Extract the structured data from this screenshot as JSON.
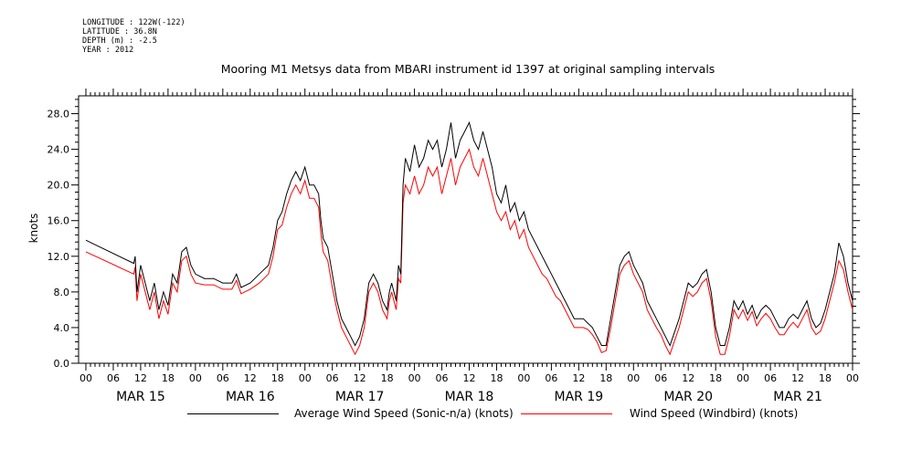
{
  "meta": {
    "longitude": "LONGITUDE : 122W(-122)",
    "latitude": "LATITUDE : 36.8N",
    "depth": "DEPTH (m) : -2.5",
    "year": "YEAR : 2012"
  },
  "chart_data": {
    "type": "line",
    "title": "Mooring M1 Metsys data from MBARI instrument id 1397 at original sampling intervals",
    "xlabel": "",
    "ylabel": "knots",
    "ylim": [
      0,
      30
    ],
    "yticks": [
      "0.0",
      "4.0",
      "8.0",
      "12.0",
      "16.0",
      "20.0",
      "24.0",
      "28.0"
    ],
    "xlim_hours": [
      0,
      168
    ],
    "hour_tick_labels": [
      "00",
      "06",
      "12",
      "18",
      "00",
      "06",
      "12",
      "18",
      "00",
      "06",
      "12",
      "18",
      "00",
      "06",
      "12",
      "18",
      "00",
      "06",
      "12",
      "18",
      "00",
      "06",
      "12",
      "18",
      "00",
      "06",
      "12",
      "18",
      "00"
    ],
    "day_labels": [
      "MAR 15",
      "MAR 16",
      "MAR 17",
      "MAR 18",
      "MAR 19",
      "MAR 20",
      "MAR 21"
    ],
    "grid": false,
    "legend_position": "bottom",
    "series": [
      {
        "name": "Average Wind Speed (Sonic-n/a) (knots)",
        "color": "#000000",
        "points": [
          [
            0,
            13.8
          ],
          [
            10.5,
            11.2
          ],
          [
            10.8,
            12
          ],
          [
            11.2,
            8
          ],
          [
            12,
            11
          ],
          [
            13,
            9
          ],
          [
            14,
            7
          ],
          [
            15,
            9
          ],
          [
            16,
            6
          ],
          [
            17,
            8
          ],
          [
            18,
            6.5
          ],
          [
            19,
            10
          ],
          [
            20,
            9
          ],
          [
            21,
            12.5
          ],
          [
            22,
            13
          ],
          [
            23,
            11
          ],
          [
            24,
            10
          ],
          [
            26,
            9.5
          ],
          [
            28,
            9.5
          ],
          [
            30,
            9
          ],
          [
            32,
            9
          ],
          [
            33,
            10
          ],
          [
            34,
            8.5
          ],
          [
            36,
            9
          ],
          [
            38,
            10
          ],
          [
            40,
            11
          ],
          [
            41,
            13
          ],
          [
            42,
            16
          ],
          [
            43,
            17
          ],
          [
            44,
            19
          ],
          [
            45,
            20.5
          ],
          [
            46,
            21.5
          ],
          [
            47,
            20.5
          ],
          [
            48,
            22
          ],
          [
            49,
            20
          ],
          [
            50,
            20
          ],
          [
            51,
            19
          ],
          [
            51.5,
            16
          ],
          [
            52,
            14
          ],
          [
            53,
            13
          ],
          [
            54,
            10
          ],
          [
            55,
            7
          ],
          [
            56,
            5
          ],
          [
            57,
            4
          ],
          [
            58,
            3
          ],
          [
            59,
            2
          ],
          [
            60,
            3
          ],
          [
            61,
            5
          ],
          [
            62,
            9
          ],
          [
            63,
            10
          ],
          [
            64,
            9
          ],
          [
            65,
            7
          ],
          [
            66,
            6
          ],
          [
            66.5,
            8
          ],
          [
            67,
            9
          ],
          [
            68,
            7
          ],
          [
            68.5,
            11
          ],
          [
            69,
            10
          ],
          [
            69.5,
            20
          ],
          [
            70,
            23
          ],
          [
            71,
            21.5
          ],
          [
            72,
            24.5
          ],
          [
            73,
            22
          ],
          [
            74,
            23
          ],
          [
            75,
            25
          ],
          [
            76,
            24
          ],
          [
            77,
            25
          ],
          [
            78,
            22
          ],
          [
            79,
            24
          ],
          [
            80,
            27
          ],
          [
            81,
            23
          ],
          [
            82,
            25
          ],
          [
            83,
            26
          ],
          [
            84,
            27
          ],
          [
            85,
            25
          ],
          [
            86,
            24
          ],
          [
            87,
            26
          ],
          [
            88,
            24
          ],
          [
            89,
            22
          ],
          [
            90,
            19
          ],
          [
            91,
            18
          ],
          [
            92,
            20
          ],
          [
            93,
            17
          ],
          [
            94,
            18
          ],
          [
            95,
            16
          ],
          [
            96,
            17
          ],
          [
            97,
            15
          ],
          [
            98,
            14
          ],
          [
            99,
            13
          ],
          [
            100,
            12
          ],
          [
            101,
            11
          ],
          [
            102,
            10
          ],
          [
            103,
            9
          ],
          [
            104,
            8
          ],
          [
            105,
            7
          ],
          [
            106,
            6
          ],
          [
            107,
            5
          ],
          [
            108,
            5
          ],
          [
            109,
            5
          ],
          [
            110,
            4.5
          ],
          [
            111,
            4
          ],
          [
            112,
            3
          ],
          [
            113,
            2
          ],
          [
            114,
            2
          ],
          [
            115,
            5
          ],
          [
            116,
            8
          ],
          [
            117,
            11
          ],
          [
            118,
            12
          ],
          [
            119,
            12.5
          ],
          [
            120,
            11
          ],
          [
            121,
            10
          ],
          [
            122,
            9
          ],
          [
            123,
            7
          ],
          [
            124,
            6
          ],
          [
            125,
            5
          ],
          [
            126,
            4
          ],
          [
            127,
            3
          ],
          [
            128,
            2
          ],
          [
            129,
            3.5
          ],
          [
            130,
            5
          ],
          [
            131,
            7
          ],
          [
            132,
            9
          ],
          [
            133,
            8.5
          ],
          [
            134,
            9
          ],
          [
            135,
            10
          ],
          [
            136,
            10.5
          ],
          [
            137,
            8
          ],
          [
            138,
            4
          ],
          [
            139,
            2
          ],
          [
            140,
            2
          ],
          [
            141,
            4
          ],
          [
            142,
            7
          ],
          [
            143,
            6
          ],
          [
            144,
            7
          ],
          [
            145,
            5.5
          ],
          [
            146,
            6.5
          ],
          [
            147,
            5
          ],
          [
            148,
            6
          ],
          [
            149,
            6.5
          ],
          [
            150,
            6
          ],
          [
            151,
            5
          ],
          [
            152,
            4
          ],
          [
            153,
            4
          ],
          [
            154,
            5
          ],
          [
            155,
            5.5
          ],
          [
            156,
            5
          ],
          [
            157,
            6
          ],
          [
            158,
            7
          ],
          [
            159,
            5
          ],
          [
            160,
            4
          ],
          [
            161,
            4.5
          ],
          [
            162,
            6
          ],
          [
            163,
            8
          ],
          [
            164,
            10
          ],
          [
            165,
            13.5
          ],
          [
            166,
            12
          ],
          [
            167,
            9
          ],
          [
            168,
            7
          ]
        ]
      },
      {
        "name": "Wind Speed (Windbird) (knots)",
        "color": "#ff0000",
        "points": [
          [
            0,
            12.5
          ],
          [
            10.5,
            10
          ],
          [
            10.8,
            10.8
          ],
          [
            11.2,
            7
          ],
          [
            12,
            10
          ],
          [
            13,
            8
          ],
          [
            14,
            6
          ],
          [
            15,
            8
          ],
          [
            16,
            5
          ],
          [
            17,
            7
          ],
          [
            18,
            5.5
          ],
          [
            19,
            9
          ],
          [
            20,
            8
          ],
          [
            21,
            11.5
          ],
          [
            22,
            12
          ],
          [
            23,
            10
          ],
          [
            24,
            9
          ],
          [
            26,
            8.8
          ],
          [
            28,
            8.8
          ],
          [
            30,
            8.3
          ],
          [
            32,
            8.3
          ],
          [
            33,
            9.3
          ],
          [
            34,
            7.8
          ],
          [
            36,
            8.3
          ],
          [
            38,
            9
          ],
          [
            40,
            10
          ],
          [
            41,
            12
          ],
          [
            42,
            15
          ],
          [
            43,
            15.5
          ],
          [
            44,
            17.5
          ],
          [
            45,
            19
          ],
          [
            46,
            20
          ],
          [
            47,
            19
          ],
          [
            48,
            20.5
          ],
          [
            49,
            18.5
          ],
          [
            50,
            18.5
          ],
          [
            51,
            17.5
          ],
          [
            51.5,
            14.5
          ],
          [
            52,
            12.5
          ],
          [
            53,
            11.5
          ],
          [
            54,
            8.5
          ],
          [
            55,
            6
          ],
          [
            56,
            4
          ],
          [
            57,
            3
          ],
          [
            58,
            2
          ],
          [
            59,
            1
          ],
          [
            60,
            2
          ],
          [
            61,
            4
          ],
          [
            62,
            8
          ],
          [
            63,
            9
          ],
          [
            64,
            8
          ],
          [
            65,
            6
          ],
          [
            66,
            5
          ],
          [
            66.5,
            7
          ],
          [
            67,
            8
          ],
          [
            68,
            6
          ],
          [
            68.5,
            9.5
          ],
          [
            69,
            9
          ],
          [
            69.5,
            18
          ],
          [
            70,
            20
          ],
          [
            71,
            19
          ],
          [
            72,
            21
          ],
          [
            73,
            19
          ],
          [
            74,
            20
          ],
          [
            75,
            22
          ],
          [
            76,
            21
          ],
          [
            77,
            22
          ],
          [
            78,
            19
          ],
          [
            79,
            21
          ],
          [
            80,
            23
          ],
          [
            81,
            20
          ],
          [
            82,
            22
          ],
          [
            83,
            23
          ],
          [
            84,
            24
          ],
          [
            85,
            22
          ],
          [
            86,
            21
          ],
          [
            87,
            23
          ],
          [
            88,
            21
          ],
          [
            89,
            19
          ],
          [
            90,
            17
          ],
          [
            91,
            16
          ],
          [
            92,
            17
          ],
          [
            93,
            15
          ],
          [
            94,
            16
          ],
          [
            95,
            14
          ],
          [
            96,
            15
          ],
          [
            97,
            13
          ],
          [
            98,
            12
          ],
          [
            99,
            11
          ],
          [
            100,
            10
          ],
          [
            101,
            9.5
          ],
          [
            102,
            8.5
          ],
          [
            103,
            7.5
          ],
          [
            104,
            7
          ],
          [
            105,
            6
          ],
          [
            106,
            5
          ],
          [
            107,
            4
          ],
          [
            108,
            4
          ],
          [
            109,
            4
          ],
          [
            110,
            3.8
          ],
          [
            111,
            3.2
          ],
          [
            112,
            2.4
          ],
          [
            113,
            1.2
          ],
          [
            114,
            1.4
          ],
          [
            115,
            4
          ],
          [
            116,
            7
          ],
          [
            117,
            10
          ],
          [
            118,
            11
          ],
          [
            119,
            11.5
          ],
          [
            120,
            10
          ],
          [
            121,
            9
          ],
          [
            122,
            8
          ],
          [
            123,
            6
          ],
          [
            124,
            5
          ],
          [
            125,
            4
          ],
          [
            126,
            3.2
          ],
          [
            127,
            2
          ],
          [
            128,
            1
          ],
          [
            129,
            2.5
          ],
          [
            130,
            4
          ],
          [
            131,
            6
          ],
          [
            132,
            8
          ],
          [
            133,
            7.5
          ],
          [
            134,
            8
          ],
          [
            135,
            9
          ],
          [
            136,
            9.5
          ],
          [
            137,
            7
          ],
          [
            138,
            3
          ],
          [
            139,
            1
          ],
          [
            140,
            1
          ],
          [
            141,
            3
          ],
          [
            142,
            6
          ],
          [
            143,
            5
          ],
          [
            144,
            6
          ],
          [
            145,
            4.8
          ],
          [
            146,
            5.8
          ],
          [
            147,
            4.2
          ],
          [
            148,
            5
          ],
          [
            149,
            5.6
          ],
          [
            150,
            5
          ],
          [
            151,
            4
          ],
          [
            152,
            3.2
          ],
          [
            153,
            3.2
          ],
          [
            154,
            4
          ],
          [
            155,
            4.6
          ],
          [
            156,
            4
          ],
          [
            157,
            5
          ],
          [
            158,
            6
          ],
          [
            159,
            4
          ],
          [
            160,
            3.2
          ],
          [
            161,
            3.6
          ],
          [
            162,
            5
          ],
          [
            163,
            7
          ],
          [
            164,
            9
          ],
          [
            165,
            11.5
          ],
          [
            166,
            10.5
          ],
          [
            167,
            8
          ],
          [
            168,
            6
          ]
        ]
      }
    ]
  }
}
